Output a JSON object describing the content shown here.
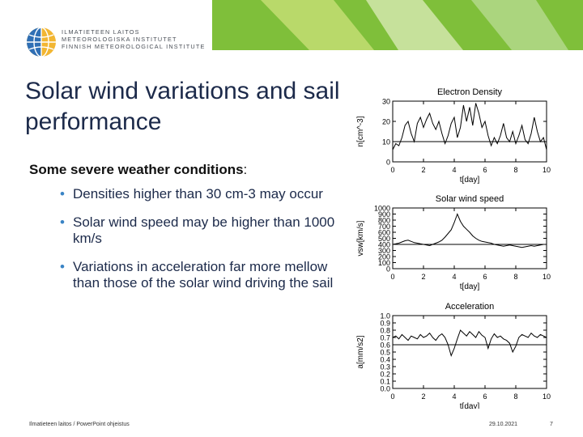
{
  "header": {
    "logo_lines": [
      "ILMATIETEEN LAITOS",
      "METEOROLOGISKA INSTITUTET",
      "FINNISH METEOROLOGICAL INSTITUTE"
    ],
    "logo_icon": "globe-logo-icon",
    "banner_colors": [
      "#7fbf3a",
      "#b9d96a",
      "#e4f0c4"
    ]
  },
  "slide": {
    "title": "Solar wind variations and sail performance",
    "subtitle_bold": "Some severe weather conditions",
    "subtitle_colon": ":",
    "bullets": [
      "Densities higher than 30 cm-3 may occur",
      "Solar wind speed may be higher than 1000 km/s",
      "Variations in acceleration far more mellow than those of the solar wind driving the sail"
    ]
  },
  "footer": {
    "left": "Ilmatieteen laitos / PowerPoint ohjeistus",
    "date": "29.10.2021",
    "page": "7"
  },
  "chart_data": [
    {
      "type": "line",
      "title": "Electron Density",
      "xlabel": "t[day]",
      "ylabel": "n[cm^-3]",
      "xlim": [
        0,
        10
      ],
      "ylim": [
        0,
        30
      ],
      "xticks": [
        0,
        2,
        4,
        6,
        8,
        10
      ],
      "yticks": [
        0,
        10,
        20,
        30
      ],
      "reference_line": 10,
      "x": [
        0,
        0.2,
        0.4,
        0.6,
        0.8,
        1.0,
        1.2,
        1.4,
        1.6,
        1.8,
        2.0,
        2.2,
        2.4,
        2.6,
        2.8,
        3.0,
        3.2,
        3.4,
        3.6,
        3.8,
        4.0,
        4.2,
        4.4,
        4.6,
        4.8,
        5.0,
        5.2,
        5.4,
        5.6,
        5.8,
        6.0,
        6.2,
        6.4,
        6.6,
        6.8,
        7.0,
        7.2,
        7.4,
        7.6,
        7.8,
        8.0,
        8.2,
        8.4,
        8.6,
        8.8,
        9.0,
        9.2,
        9.4,
        9.6,
        9.8,
        10.0
      ],
      "y": [
        6,
        9,
        8,
        12,
        18,
        20,
        14,
        10,
        19,
        22,
        17,
        21,
        24,
        19,
        16,
        20,
        14,
        9,
        13,
        19,
        22,
        12,
        17,
        28,
        20,
        27,
        18,
        29,
        24,
        17,
        20,
        13,
        8,
        12,
        9,
        13,
        19,
        12,
        10,
        15,
        9,
        13,
        18,
        11,
        9,
        14,
        22,
        15,
        10,
        12,
        6
      ]
    },
    {
      "type": "line",
      "title": "Solar wind speed",
      "xlabel": "t[day]",
      "ylabel": "vsw[km/s]",
      "xlim": [
        0,
        10
      ],
      "ylim": [
        0,
        1000
      ],
      "xticks": [
        0,
        2,
        4,
        6,
        8,
        10
      ],
      "yticks": [
        0,
        100,
        200,
        300,
        400,
        500,
        600,
        700,
        800,
        900,
        1000
      ],
      "reference_line": 400,
      "x": [
        0,
        0.2,
        0.4,
        0.6,
        0.8,
        1.0,
        1.2,
        1.4,
        1.6,
        1.8,
        2.0,
        2.2,
        2.4,
        2.6,
        2.8,
        3.0,
        3.2,
        3.4,
        3.6,
        3.8,
        4.0,
        4.2,
        4.4,
        4.6,
        4.8,
        5.0,
        5.2,
        5.4,
        5.6,
        5.8,
        6.0,
        6.2,
        6.4,
        6.6,
        6.8,
        7.0,
        7.2,
        7.4,
        7.6,
        7.8,
        8.0,
        8.2,
        8.4,
        8.6,
        8.8,
        9.0,
        9.2,
        9.4,
        9.6,
        9.8,
        10.0
      ],
      "y": [
        400,
        410,
        420,
        440,
        460,
        470,
        450,
        430,
        420,
        410,
        400,
        390,
        380,
        400,
        420,
        440,
        470,
        520,
        580,
        640,
        760,
        900,
        780,
        700,
        650,
        600,
        540,
        500,
        470,
        450,
        440,
        430,
        420,
        400,
        390,
        380,
        370,
        380,
        390,
        380,
        370,
        360,
        350,
        360,
        370,
        380,
        370,
        380,
        390,
        400,
        400
      ]
    },
    {
      "type": "line",
      "title": "Acceleration",
      "xlabel": "t[day]",
      "ylabel": "a[mm/s2]",
      "xlim": [
        0,
        10
      ],
      "ylim": [
        0,
        1.0
      ],
      "xticks": [
        0,
        2,
        4,
        6,
        8,
        10
      ],
      "yticks": [
        0,
        0.1,
        0.2,
        0.3,
        0.4,
        0.5,
        0.6,
        0.7,
        0.8,
        0.9,
        1.0
      ],
      "reference_line": 0.6,
      "x": [
        0,
        0.2,
        0.4,
        0.6,
        0.8,
        1.0,
        1.2,
        1.4,
        1.6,
        1.8,
        2.0,
        2.2,
        2.4,
        2.6,
        2.8,
        3.0,
        3.2,
        3.4,
        3.6,
        3.8,
        4.0,
        4.2,
        4.4,
        4.6,
        4.8,
        5.0,
        5.2,
        5.4,
        5.6,
        5.8,
        6.0,
        6.2,
        6.4,
        6.6,
        6.8,
        7.0,
        7.2,
        7.4,
        7.6,
        7.8,
        8.0,
        8.2,
        8.4,
        8.6,
        8.8,
        9.0,
        9.2,
        9.4,
        9.6,
        9.8,
        10.0
      ],
      "y": [
        0.7,
        0.72,
        0.68,
        0.74,
        0.7,
        0.66,
        0.72,
        0.7,
        0.68,
        0.74,
        0.7,
        0.72,
        0.76,
        0.7,
        0.66,
        0.72,
        0.75,
        0.7,
        0.6,
        0.45,
        0.55,
        0.68,
        0.8,
        0.76,
        0.72,
        0.78,
        0.74,
        0.7,
        0.78,
        0.73,
        0.7,
        0.55,
        0.68,
        0.75,
        0.7,
        0.72,
        0.68,
        0.66,
        0.62,
        0.5,
        0.58,
        0.7,
        0.74,
        0.72,
        0.7,
        0.76,
        0.72,
        0.7,
        0.74,
        0.72,
        0.7
      ]
    }
  ]
}
